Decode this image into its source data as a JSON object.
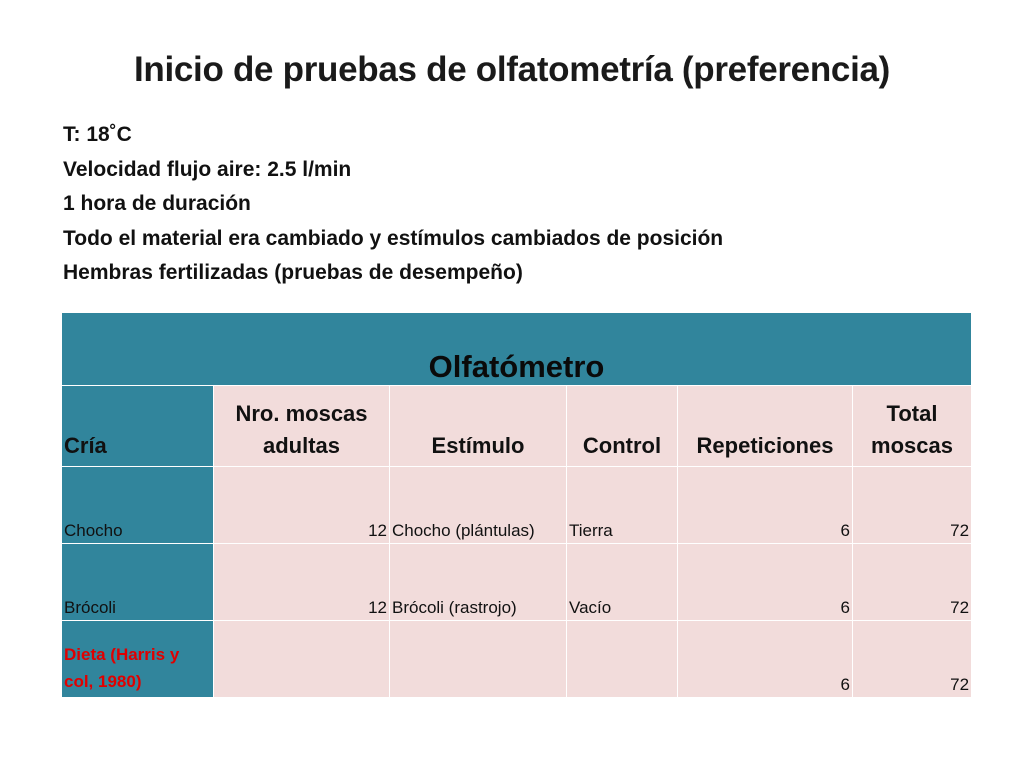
{
  "title": "Inicio de pruebas de olfatometría (preferencia)",
  "info_lines": [
    "T: 18˚C",
    "Velocidad flujo aire: 2.5 l/min",
    "1 hora de duración",
    "Todo el material era cambiado y estímulos cambiados de posición",
    "Hembras fertilizadas (pruebas de desempeño)"
  ],
  "table": {
    "banner": "Olfatómetro",
    "headers": {
      "cria": "Cría",
      "nro_moscas_line1": "Nro. moscas",
      "nro_moscas_line2": "adultas",
      "estimulo": "Estímulo",
      "control": "Control",
      "repeticiones": "Repeticiones",
      "total_line1": "Total",
      "total_line2": "moscas"
    },
    "rows": [
      {
        "cria": "Chocho",
        "nro": "12",
        "estimulo": "Chocho (plántulas)",
        "control": "Tierra",
        "repeticiones": "6",
        "total": "72"
      },
      {
        "cria": "Brócoli",
        "nro": "12",
        "estimulo": "Brócoli (rastrojo)",
        "control": "Vacío",
        "repeticiones": "6",
        "total": "72"
      },
      {
        "cria_line1": "Dieta (Harris y",
        "cria_line2": "col, 1980)",
        "nro": "",
        "estimulo": "",
        "control": "",
        "repeticiones": "6",
        "total": "72"
      }
    ]
  },
  "colors": {
    "header_teal": "#31859C",
    "cell_pink": "#F2DCDB",
    "highlight_red": "#E00000"
  }
}
